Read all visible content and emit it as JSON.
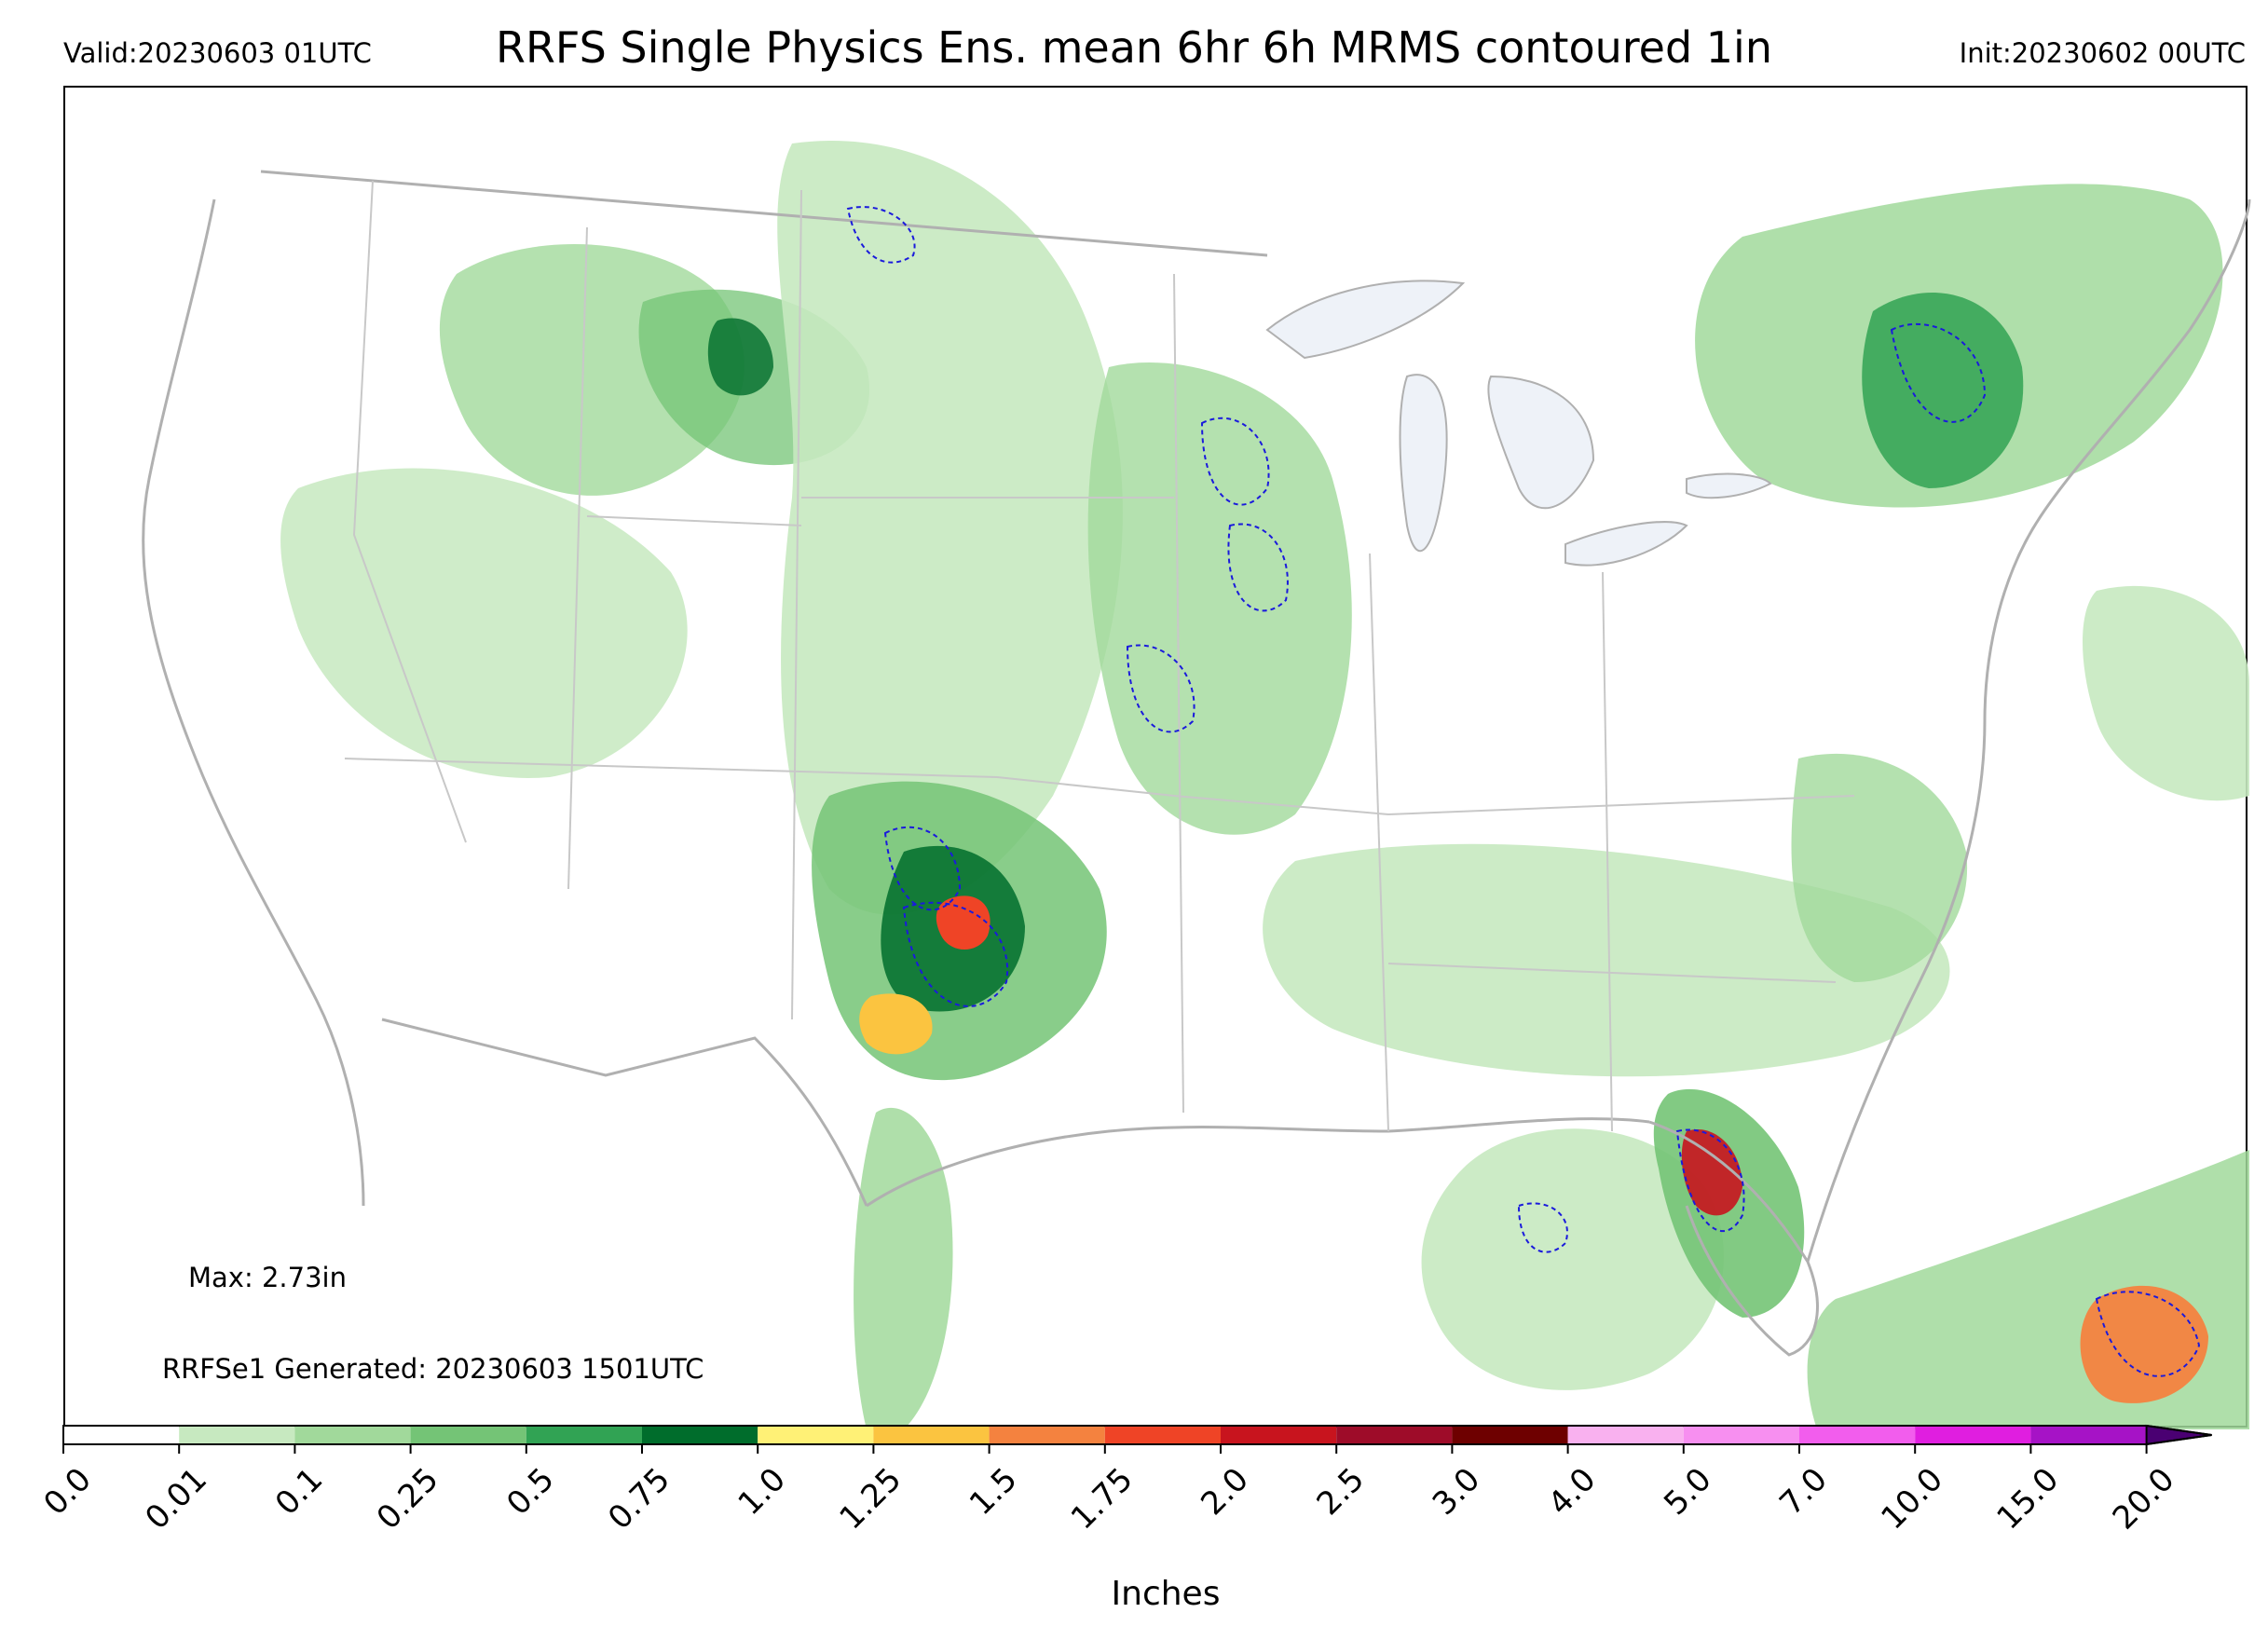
{
  "header": {
    "valid": "Valid:20230603 01UTC",
    "title": "RRFS Single Physics Ens. mean 6hr 6h MRMS contoured 1in",
    "init": "Init:20230602 00UTC"
  },
  "annotations": {
    "max": "Max: 2.73in",
    "generated": "RRFSe1 Generated: 20230603 1501UTC"
  },
  "colorbar": {
    "label": "Inches",
    "ticks": [
      "0.0",
      "0.01",
      "0.1",
      "0.25",
      "0.5",
      "0.75",
      "1.0",
      "1.25",
      "1.5",
      "1.75",
      "2.0",
      "2.5",
      "3.0",
      "4.0",
      "5.0",
      "7.0",
      "10.0",
      "15.0",
      "20.0"
    ],
    "colors": [
      "#ffffff",
      "#c7e9c0",
      "#a1d99b",
      "#74c476",
      "#31a354",
      "#006d2c",
      "#fff176",
      "#fbc440",
      "#f4823f",
      "#ef4426",
      "#c8141e",
      "#9e0c29",
      "#6e0000",
      "#f9b1ef",
      "#f78ff0",
      "#f25ded",
      "#e01ee0",
      "#a613c6"
    ],
    "extend_color": "#4a0072"
  },
  "map": {
    "land_border_color": "#b0b0b0",
    "lake_color": "#eef2f8",
    "contour_color": "#1a1adc",
    "light_green": "#c7e9c0",
    "mid_green": "#74c476",
    "dark_green": "#006d2c"
  }
}
